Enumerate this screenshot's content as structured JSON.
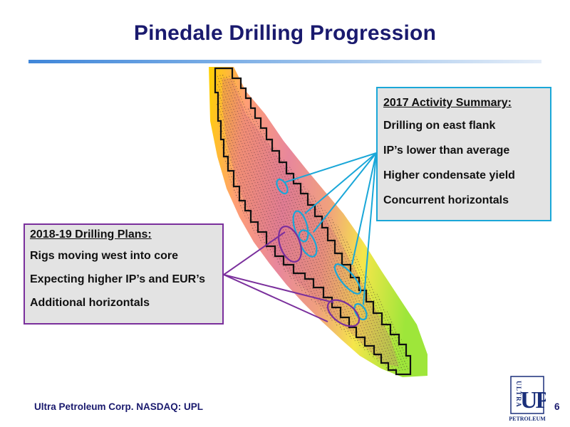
{
  "slide": {
    "title": "Pinedale Drilling Progression",
    "page_number": "6"
  },
  "summary_2017": {
    "heading": "2017 Activity Summary:",
    "items": [
      "Drilling on east flank",
      "IP’s lower than average",
      "Higher condensate yield",
      "Concurrent horizontals"
    ],
    "border_color": "#1aa7d8"
  },
  "plans_2018_19": {
    "heading": "2018-19 Drilling Plans:",
    "items": [
      "Rigs moving west into core",
      "Expecting higher IP’s and EUR’s",
      "Additional horizontals"
    ],
    "border_color": "#7a2f9c"
  },
  "footer": {
    "company": "Ultra Petroleum Corp. NASDAQ: UPL"
  },
  "logo": {
    "vertical_text": "ULTRA",
    "letters": "UP",
    "wordmark": "PETROLEUM"
  },
  "colors": {
    "title": "#1a1a6e",
    "rule": "#3f86d9",
    "box_fill": "#e3e3e3"
  }
}
